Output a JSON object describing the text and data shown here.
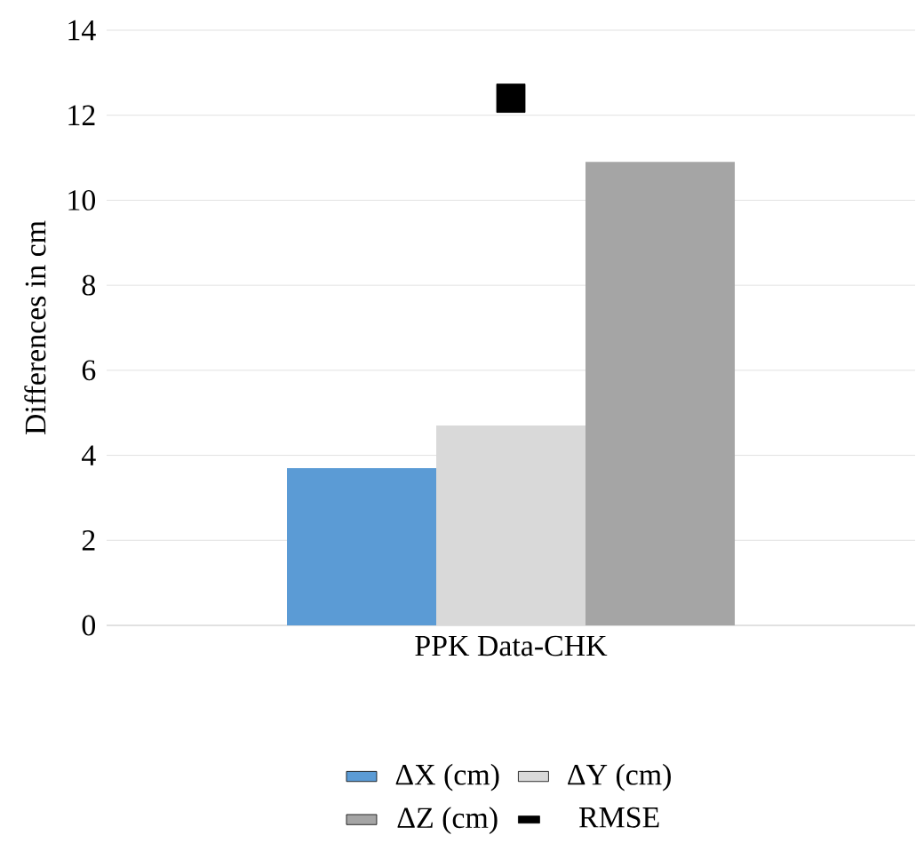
{
  "chart_data": {
    "type": "bar",
    "ylabel": "Differences in cm",
    "categories": [
      "PPK Data-CHK"
    ],
    "series": [
      {
        "name": "ΔX (cm)",
        "color": "#5b9bd5",
        "values": [
          3.7
        ]
      },
      {
        "name": "ΔY (cm)",
        "color": "#d9d9d9",
        "values": [
          4.7
        ]
      },
      {
        "name": "ΔZ (cm)",
        "color": "#a5a5a5",
        "values": [
          10.9
        ]
      },
      {
        "name": "RMSE",
        "type": "scatter",
        "marker": "square",
        "color": "#000000",
        "values": [
          12.4
        ]
      }
    ],
    "ylim": [
      0,
      14
    ],
    "yticks": [
      0,
      2,
      4,
      6,
      8,
      10,
      12,
      14
    ],
    "grid": "y",
    "legend": "bottom"
  }
}
